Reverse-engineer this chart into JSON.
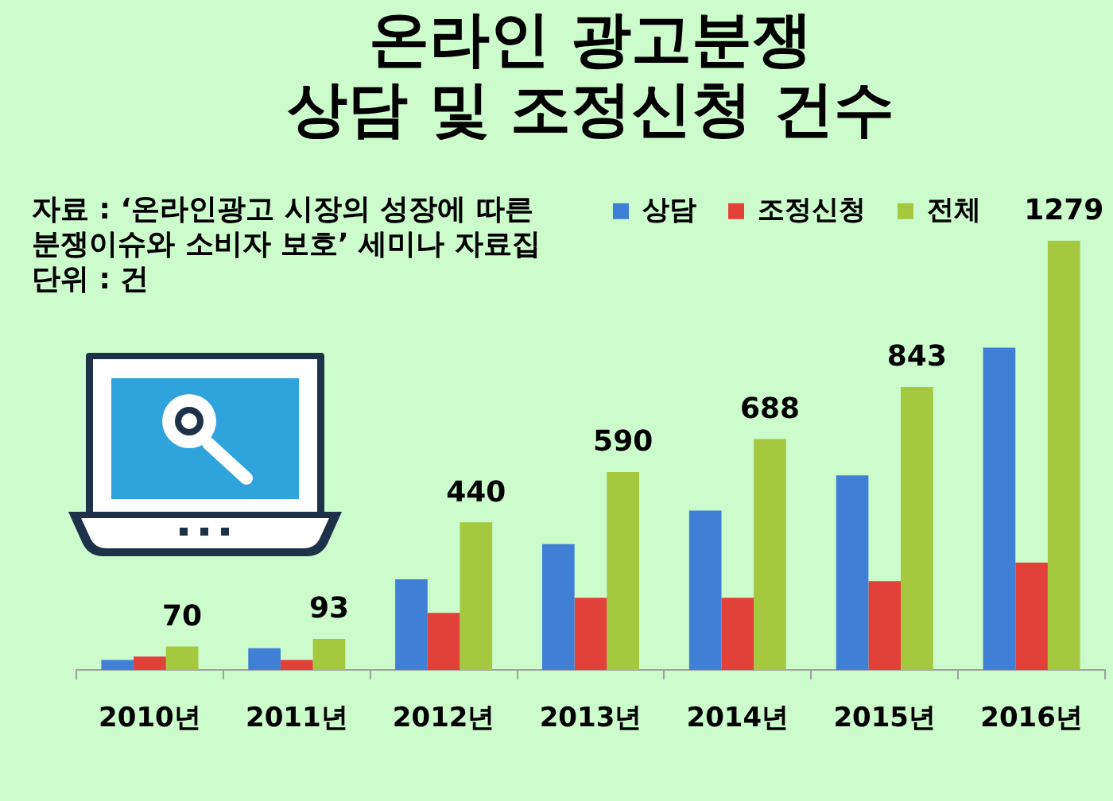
{
  "chart_data": {
    "type": "bar",
    "title": "온라인 광고분쟁\n상담 및 조정신청 건수",
    "annotations": [
      "자료 : ‘온라인광고 시장의 성장에 따른\n분쟁이슈와 소비자 보호’ 세미나 자료집",
      "단위 : 건"
    ],
    "categories": [
      "2010년",
      "2011년",
      "2012년",
      "2013년",
      "2014년",
      "2015년",
      "2016년"
    ],
    "series": [
      {
        "name": "상담",
        "color": "#3f7fd6",
        "values": [
          30,
          65,
          270,
          375,
          475,
          580,
          960
        ]
      },
      {
        "name": "조정신청",
        "color": "#e2413a",
        "values": [
          40,
          30,
          170,
          215,
          215,
          265,
          320
        ]
      },
      {
        "name": "전체",
        "color": "#a4c93e",
        "values": [
          70,
          93,
          440,
          590,
          688,
          843,
          1279
        ],
        "value_labels": [
          "70",
          "93",
          "440",
          "590",
          "688",
          "843",
          "1279"
        ]
      }
    ],
    "tick_labels": "x",
    "legend": "top right"
  }
}
